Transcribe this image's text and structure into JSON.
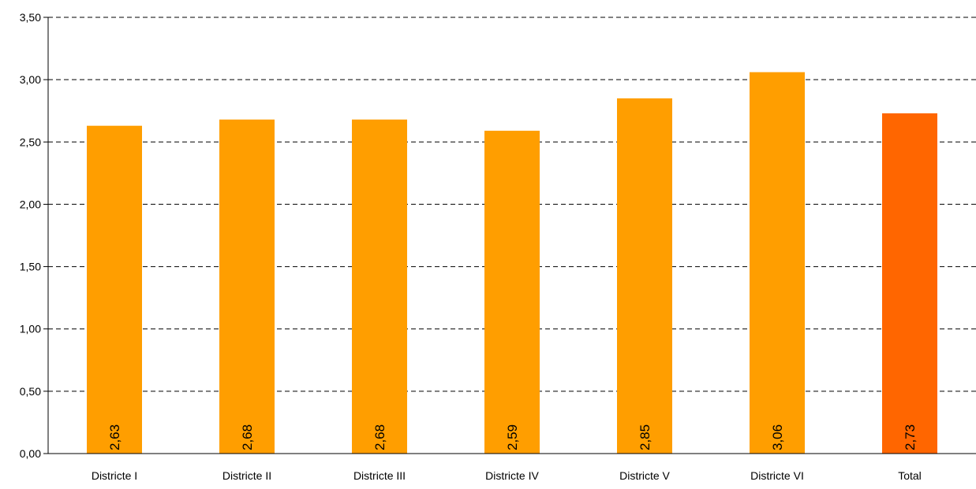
{
  "chart_data": {
    "type": "bar",
    "title": "",
    "xlabel": "",
    "ylabel": "",
    "categories": [
      "Districte I",
      "Districte II",
      "Districte III",
      "Districte IV",
      "Districte V",
      "Districte VI",
      "Total"
    ],
    "values": [
      2.63,
      2.68,
      2.68,
      2.59,
      2.85,
      3.06,
      2.73
    ],
    "value_labels": [
      "2,63",
      "2,68",
      "2,68",
      "2,59",
      "2,85",
      "3,06",
      "2,73"
    ],
    "y_ticks": [
      "0,00",
      "0,50",
      "1,00",
      "1,50",
      "2,00",
      "2,50",
      "3,00",
      "3,50"
    ],
    "ylim": [
      0,
      3.5
    ],
    "grid": true,
    "grid_style": "dashed",
    "legend": false,
    "colors": {
      "bar": "#FF9E00",
      "total_bar": "#FF6600",
      "axis": "#000000"
    }
  }
}
